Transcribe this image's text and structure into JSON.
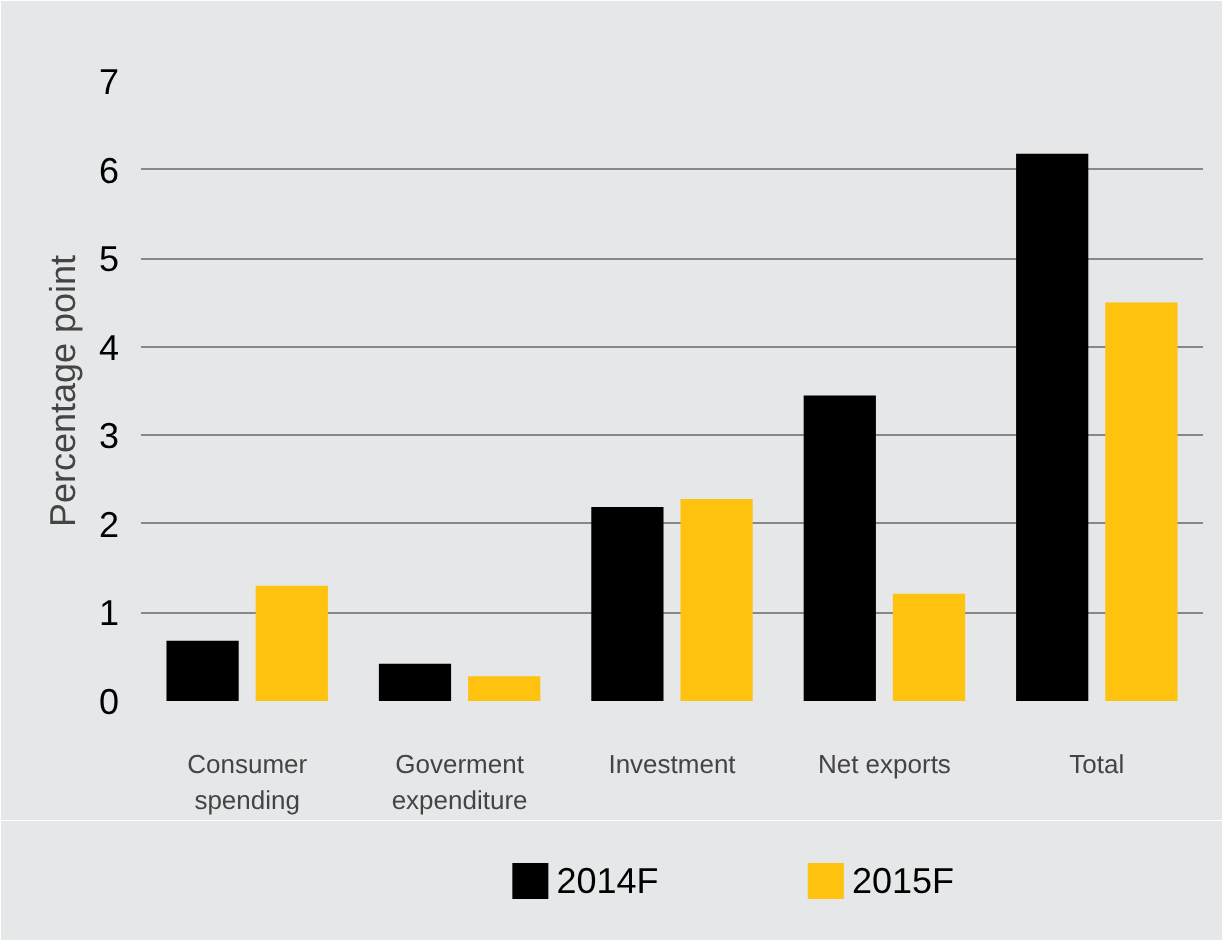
{
  "chart_data": {
    "type": "bar",
    "ylabel": "Percentage point",
    "categories": [
      "Consumer spending",
      "Goverment expenditure",
      "Investment",
      "Net exports",
      "Total"
    ],
    "series": [
      {
        "name": "2014F",
        "color": "#000000",
        "values": [
          0.68,
          0.42,
          2.19,
          3.45,
          6.18
        ]
      },
      {
        "name": "2015F",
        "color": "#ffc20e",
        "values": [
          1.3,
          0.28,
          2.28,
          1.21,
          4.5
        ]
      }
    ],
    "ylim": [
      0,
      7
    ],
    "yticks": [
      0,
      1,
      2,
      3,
      4,
      5,
      6,
      7
    ],
    "grid": "y",
    "legend": "bottom"
  }
}
